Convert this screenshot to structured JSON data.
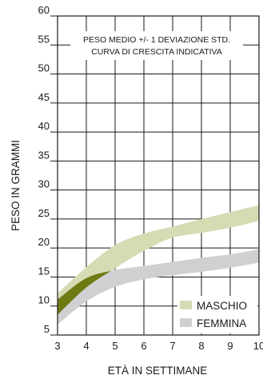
{
  "chart_data": {
    "type": "area",
    "xlabel": "ETÀ IN SETTIMANE",
    "ylabel": "PESO IN GRAMMI",
    "annotation_lines": [
      "PESO MEDIO +/- 1 DEVIAZIONE STD.",
      "CURVA DI CRESCITA INDICATIVA"
    ],
    "xlim": [
      3,
      10
    ],
    "ylim": [
      5,
      60
    ],
    "x_ticks": [
      3,
      4,
      5,
      6,
      7,
      8,
      9,
      10
    ],
    "y_ticks": [
      5,
      10,
      15,
      20,
      25,
      30,
      35,
      40,
      45,
      50,
      55,
      60
    ],
    "x_tick_labels": [
      "3",
      "4",
      "5",
      "6",
      "7",
      "8",
      "9",
      "10"
    ],
    "y_tick_labels": [
      "5",
      "10",
      "15",
      "20",
      "25",
      "30",
      "35",
      "40",
      "45",
      "50",
      "55",
      "60"
    ],
    "grid": true,
    "legend_position": "bottom-right",
    "overlap_color": "#6f7a12",
    "series": [
      {
        "name": "MASCHIO",
        "color": "#d6dbb4",
        "x": [
          3,
          4,
          5,
          6,
          7,
          8,
          9,
          10
        ],
        "lower": [
          8.5,
          13.2,
          16.5,
          19.5,
          21.8,
          22.6,
          23.5,
          24.7
        ],
        "upper": [
          12.2,
          16.7,
          20.5,
          22.5,
          23.7,
          25.0,
          26.2,
          27.4
        ]
      },
      {
        "name": "FEMMINA",
        "color": "#d0d0d2",
        "x": [
          3,
          4,
          5,
          6,
          7,
          8,
          9,
          10
        ],
        "lower": [
          6.8,
          10.8,
          13.3,
          14.6,
          15.3,
          15.9,
          16.6,
          17.5
        ],
        "upper": [
          11.1,
          14.8,
          16.2,
          16.9,
          17.6,
          18.3,
          18.9,
          19.8
        ]
      }
    ]
  }
}
